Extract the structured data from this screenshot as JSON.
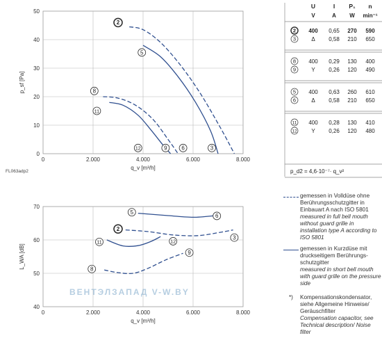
{
  "chart_data": [
    {
      "type": "line",
      "title": "",
      "ylabel": "p_sf [Pa]",
      "xlabel": "q_v [m³/h]",
      "xlim": [
        0,
        8000
      ],
      "ylim": [
        0,
        50
      ],
      "xticks": [
        "0",
        "2.000",
        "4.000",
        "6.000",
        "8.000"
      ],
      "yticks": [
        "0",
        "10",
        "20",
        "30",
        "40",
        "50"
      ],
      "grid": true,
      "corner_label": "FL063adp2",
      "series": [
        {
          "name": "2",
          "style": "dashed",
          "x": [
            3450,
            4000,
            4700,
            5500,
            6300,
            7100,
            7650
          ],
          "y": [
            44.5,
            43.5,
            39,
            31,
            21,
            9,
            0
          ]
        },
        {
          "name": "5",
          "style": "solid",
          "x": [
            4000,
            4700,
            5400,
            6100,
            6700,
            7000
          ],
          "y": [
            38,
            34,
            27,
            18,
            8,
            0
          ]
        },
        {
          "name": "8",
          "style": "dashed",
          "x": [
            2400,
            3000,
            3700,
            4400,
            5000,
            5400
          ],
          "y": [
            20,
            19.5,
            17,
            12,
            5,
            0
          ]
        },
        {
          "name": "11",
          "style": "solid",
          "x": [
            2650,
            3200,
            3800,
            4300,
            4800,
            5100
          ],
          "y": [
            18,
            17,
            13.5,
            8.5,
            3,
            0
          ]
        }
      ],
      "markers": [
        {
          "label": "2",
          "x": 3000,
          "y": 46
        },
        {
          "label": "5",
          "x": 3950,
          "y": 35.5
        },
        {
          "label": "8",
          "x": 2050,
          "y": 22
        },
        {
          "label": "11",
          "x": 2150,
          "y": 15
        },
        {
          "label": "12",
          "x": 3800,
          "y": 2
        },
        {
          "label": "9",
          "x": 4900,
          "y": 2
        },
        {
          "label": "6",
          "x": 5600,
          "y": 2
        },
        {
          "label": "3",
          "x": 6750,
          "y": 2
        }
      ]
    },
    {
      "type": "line",
      "title": "",
      "ylabel": "L_WA [dB]",
      "xlabel": "q_v [m³/h]",
      "xlim": [
        0,
        8000
      ],
      "ylim": [
        40,
        70
      ],
      "xticks": [
        "0",
        "2.000",
        "4.000",
        "6.000",
        "8.000"
      ],
      "yticks": [
        "40",
        "50",
        "60",
        "70"
      ],
      "grid": true,
      "series": [
        {
          "name": "5",
          "style": "solid",
          "x": [
            3800,
            5000,
            6000,
            6900
          ],
          "y": [
            68,
            67.3,
            66.8,
            67.3
          ]
        },
        {
          "name": "2",
          "style": "dashed",
          "x": [
            3300,
            4200,
            5200,
            6200,
            7100,
            7600
          ],
          "y": [
            63,
            62.5,
            61.5,
            61.3,
            62.3,
            63
          ]
        },
        {
          "name": "11",
          "style": "solid",
          "x": [
            2550,
            3200,
            3800,
            4300,
            4700
          ],
          "y": [
            60,
            58.2,
            58.3,
            59.5,
            61
          ]
        },
        {
          "name": "8",
          "style": "dashed",
          "x": [
            2450,
            3000,
            3600,
            4200,
            4900,
            5600
          ],
          "y": [
            51,
            50.2,
            50,
            51.5,
            54,
            56
          ]
        }
      ],
      "markers": [
        {
          "label": "5",
          "x": 3550,
          "y": 68.3
        },
        {
          "label": "6",
          "x": 6950,
          "y": 67.2
        },
        {
          "label": "2",
          "x": 3000,
          "y": 63.3
        },
        {
          "label": "3",
          "x": 7650,
          "y": 60.7
        },
        {
          "label": "11",
          "x": 2250,
          "y": 59.4
        },
        {
          "label": "12",
          "x": 5200,
          "y": 59.6
        },
        {
          "label": "9",
          "x": 5850,
          "y": 56.2
        },
        {
          "label": "8",
          "x": 1950,
          "y": 51.3
        }
      ]
    }
  ],
  "table": {
    "headers": [
      "U",
      "I",
      "P₁",
      "n"
    ],
    "units": [
      "V",
      "A",
      "W",
      "min⁻¹"
    ],
    "groups": [
      [
        {
          "curve": "2",
          "U": "400",
          "I": "0,65",
          "P": "270",
          "n": "590",
          "bold": true
        },
        {
          "curve": "3",
          "U": "Δ",
          "I": "0,58",
          "P": "210",
          "n": "650",
          "bold": false
        }
      ],
      [
        {
          "curve": "8",
          "U": "400",
          "I": "0,29",
          "P": "130",
          "n": "400",
          "bold": false
        },
        {
          "curve": "9",
          "U": "Y",
          "I": "0,26",
          "P": "120",
          "n": "490",
          "bold": false
        }
      ],
      [
        {
          "curve": "5",
          "U": "400",
          "I": "0,63",
          "P": "260",
          "n": "610",
          "bold": false
        },
        {
          "curve": "6",
          "U": "Δ",
          "I": "0,58",
          "P": "210",
          "n": "650",
          "bold": false
        }
      ],
      [
        {
          "curve": "11",
          "U": "400",
          "I": "0,28",
          "P": "130",
          "n": "410",
          "bold": false
        },
        {
          "curve": "12",
          "U": "Y",
          "I": "0,26",
          "P": "120",
          "n": "480",
          "bold": false
        }
      ]
    ],
    "formula": "p_d2 = 4,6·10⁻⁷· q_v²"
  },
  "legend": {
    "dashed": {
      "de": "gemessen in Volldüse ohne Berührungsschutzgitter in Einbauart A nach ISO 5801",
      "en": "measured in full bell mouth without guard grille in installation type A according to ISO 5801"
    },
    "solid": {
      "de": "gemessen in Kurzdüse mit druckseitigem Berührungs-schutzgitter",
      "en": "measured in short bell mouth with guard grille on the pressure side"
    },
    "note": {
      "mark": "*)",
      "de": "Kompensationskondensator, siehe Allgemeine Hinweise/ Geräuschfilter",
      "en": "Compensation capacitor, see Technical description/ Noise filter"
    }
  },
  "watermark": "ВЕНТЭЛЗАПАД   V-W.BY",
  "colors": {
    "curve": "#2f4f8f",
    "grid": "#b8b8b8",
    "text": "#222222"
  }
}
